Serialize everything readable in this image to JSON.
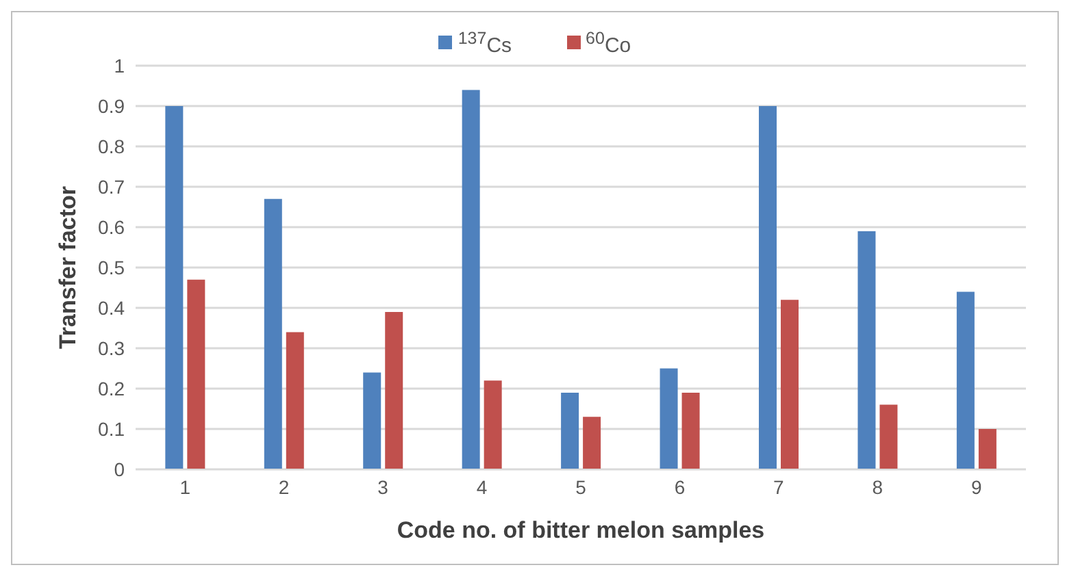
{
  "chart_data": {
    "type": "bar",
    "xlabel": "Code no. of bitter melon samples",
    "ylabel": "Transfer factor",
    "categories": [
      "1",
      "2",
      "3",
      "4",
      "5",
      "6",
      "7",
      "8",
      "9"
    ],
    "series": [
      {
        "name": "$^{137}$Cs",
        "color": "#4f81bd",
        "values": [
          0.9,
          0.67,
          0.24,
          0.94,
          0.19,
          0.25,
          0.9,
          0.59,
          0.44
        ]
      },
      {
        "name": "$^{60}$Co",
        "color": "#c0504d",
        "values": [
          0.47,
          0.34,
          0.39,
          0.22,
          0.13,
          0.19,
          0.42,
          0.16,
          0.1
        ]
      }
    ],
    "ylim": [
      0,
      1
    ],
    "yticks": [
      0,
      0.1,
      0.2,
      0.3,
      0.4,
      0.5,
      0.6,
      0.7,
      0.8,
      0.9,
      1
    ],
    "grid": "y",
    "legend": "top"
  }
}
